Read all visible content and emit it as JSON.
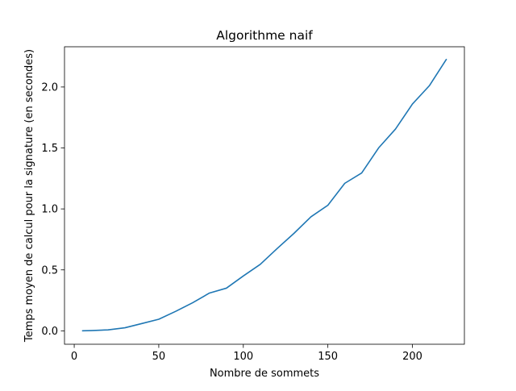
{
  "chart_data": {
    "type": "line",
    "title": "Algorithme naif",
    "xlabel": "Nombre de sommets",
    "ylabel": "Temps moyen de calcul pour la signature (en secondes)",
    "xlim": [
      -5.75,
      230.75
    ],
    "ylim": [
      -0.11,
      2.33
    ],
    "x_ticks": [
      0,
      50,
      100,
      150,
      200
    ],
    "x_tick_labels": [
      "0",
      "50",
      "100",
      "150",
      "200"
    ],
    "y_ticks": [
      0.0,
      0.5,
      1.0,
      1.5,
      2.0
    ],
    "y_tick_labels": [
      "0.0",
      "0.5",
      "1.0",
      "1.5",
      "2.0"
    ],
    "grid": false,
    "series": [
      {
        "color": "#1f77b4",
        "x": [
          5,
          10,
          20,
          30,
          40,
          50,
          60,
          70,
          80,
          90,
          100,
          110,
          120,
          130,
          140,
          150,
          160,
          170,
          180,
          190,
          200,
          210,
          220
        ],
        "y": [
          0.0,
          0.002,
          0.008,
          0.025,
          0.06,
          0.095,
          0.16,
          0.23,
          0.31,
          0.35,
          0.45,
          0.545,
          0.675,
          0.8,
          0.935,
          1.03,
          1.21,
          1.295,
          1.5,
          1.655,
          1.86,
          2.01,
          2.225
        ]
      }
    ]
  }
}
